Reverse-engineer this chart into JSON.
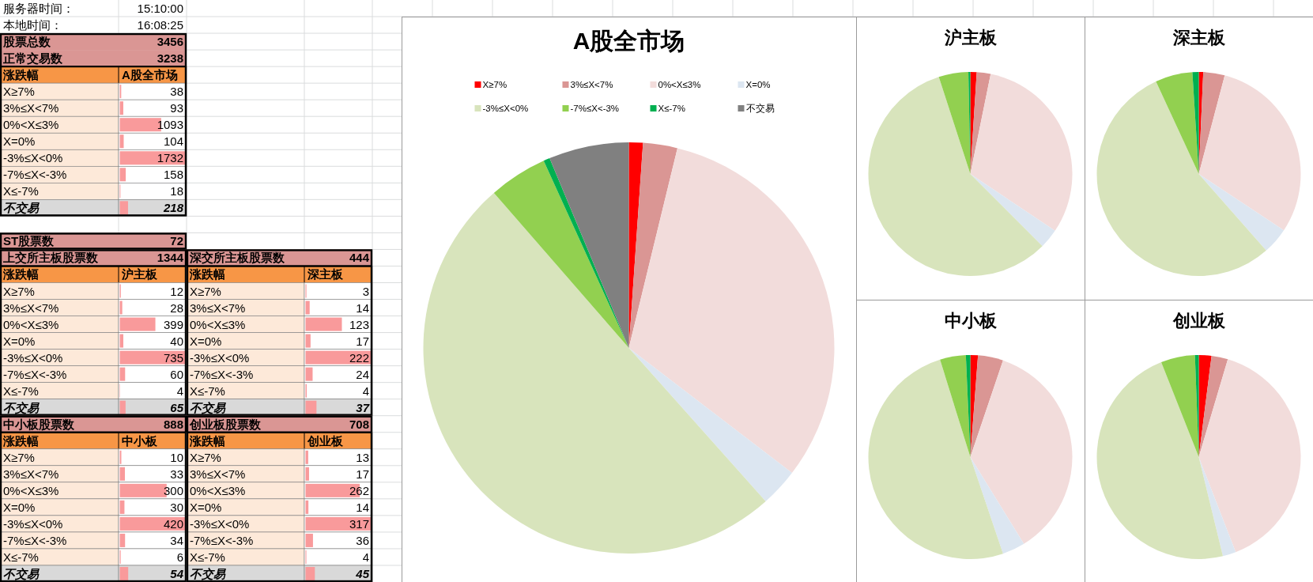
{
  "chart_data": [
    {
      "type": "other",
      "annotations": [
        "服务器时间：",
        "15:10:00",
        "本地时间：",
        "16:08:25",
        "ST股票数",
        "72"
      ]
    },
    {
      "type": "bar",
      "orientation": "horizontal",
      "ylabel": "涨跌幅",
      "xlabel": "A股全市场",
      "categories": [
        "X≥7%",
        "3%≤X<7%",
        "0%<X≤3%",
        "X=0%",
        "-3%≤X<0%",
        "-7%≤X<-3%",
        "X≤-7%",
        "不交易"
      ],
      "values": [
        38,
        93,
        1093,
        104,
        1732,
        158,
        18,
        218
      ],
      "color": "#f99a9b",
      "data_labels": true,
      "xlim": [
        0,
        1732
      ],
      "tick_labels": "y",
      "annotations": [
        "股票总数",
        "3456",
        "正常交易数",
        "3238"
      ]
    },
    {
      "type": "bar",
      "orientation": "horizontal",
      "ylabel": "涨跌幅",
      "xlabel": "沪主板",
      "categories": [
        "X≥7%",
        "3%≤X<7%",
        "0%<X≤3%",
        "X=0%",
        "-3%≤X<0%",
        "-7%≤X<-3%",
        "X≤-7%",
        "不交易"
      ],
      "values": [
        12,
        28,
        399,
        40,
        735,
        60,
        4,
        65
      ],
      "color": "#f99a9b",
      "data_labels": true,
      "xlim": [
        0,
        735
      ],
      "tick_labels": "y",
      "annotations": [
        "上交所主板股票数",
        "1344"
      ]
    },
    {
      "type": "bar",
      "orientation": "horizontal",
      "ylabel": "涨跌幅",
      "xlabel": "深主板",
      "categories": [
        "X≥7%",
        "3%≤X<7%",
        "0%<X≤3%",
        "X=0%",
        "-3%≤X<0%",
        "-7%≤X<-3%",
        "X≤-7%",
        "不交易"
      ],
      "values": [
        3,
        14,
        123,
        17,
        222,
        24,
        4,
        37
      ],
      "color": "#f99a9b",
      "data_labels": true,
      "xlim": [
        0,
        222
      ],
      "tick_labels": "y",
      "annotations": [
        "深交所主板股票数",
        "444"
      ]
    },
    {
      "type": "bar",
      "orientation": "horizontal",
      "ylabel": "涨跌幅",
      "xlabel": "中小板",
      "categories": [
        "X≥7%",
        "3%≤X<7%",
        "0%<X≤3%",
        "X=0%",
        "-3%≤X<0%",
        "-7%≤X<-3%",
        "X≤-7%",
        "不交易"
      ],
      "values": [
        10,
        33,
        300,
        30,
        420,
        34,
        6,
        54
      ],
      "color": "#f99a9b",
      "data_labels": true,
      "xlim": [
        0,
        420
      ],
      "tick_labels": "y",
      "annotations": [
        "中小板股票数",
        "888"
      ]
    },
    {
      "type": "bar",
      "orientation": "horizontal",
      "ylabel": "涨跌幅",
      "xlabel": "创业板",
      "categories": [
        "X≥7%",
        "3%≤X<7%",
        "0%<X≤3%",
        "X=0%",
        "-3%≤X<0%",
        "-7%≤X<-3%",
        "X≤-7%",
        "不交易"
      ],
      "values": [
        13,
        17,
        262,
        14,
        317,
        36,
        4,
        45
      ],
      "color": "#f99a9b",
      "data_labels": true,
      "xlim": [
        0,
        317
      ],
      "tick_labels": "y",
      "annotations": [
        "创业板股票数",
        "708"
      ]
    },
    {
      "type": "pie",
      "title": "A股全市场",
      "categories": [
        "X≥7%",
        "3%≤X<7%",
        "0%<X≤3%",
        "X=0%",
        "-3%≤X<0%",
        "-7%≤X<-3%",
        "X≤-7%",
        "不交易"
      ],
      "values": [
        1.1,
        2.7,
        31.6,
        3.0,
        50.2,
        4.6,
        0.5,
        6.3
      ],
      "colors": [
        "#ff0000",
        "#da9694",
        "#f2dcdb",
        "#dce6f1",
        "#d8e4bc",
        "#92d050",
        "#00b050",
        "#808080"
      ],
      "legend": "top"
    },
    {
      "type": "pie",
      "title": "沪主板",
      "categories": [
        null,
        null,
        null,
        null,
        null,
        null,
        null
      ],
      "values": [
        1.0,
        2.2,
        31.2,
        3.1,
        57.5,
        4.7,
        0.3
      ],
      "colors": [
        "#ff0000",
        "#da9694",
        "#f2dcdb",
        "#dce6f1",
        "#d8e4bc",
        "#92d050",
        "#00b050"
      ]
    },
    {
      "type": "pie",
      "title": "深主板",
      "categories": [
        null,
        null,
        null,
        null,
        null,
        null,
        null
      ],
      "values": [
        0.7,
        3.4,
        30.2,
        4.2,
        54.6,
        5.9,
        1.0
      ],
      "colors": [
        "#ff0000",
        "#da9694",
        "#f2dcdb",
        "#dce6f1",
        "#d8e4bc",
        "#92d050",
        "#00b050"
      ]
    },
    {
      "type": "pie",
      "title": "中小板",
      "categories": [
        null,
        null,
        null,
        null,
        null,
        null,
        null
      ],
      "values": [
        1.2,
        4.0,
        36.0,
        3.6,
        50.4,
        4.1,
        0.7
      ],
      "colors": [
        "#ff0000",
        "#da9694",
        "#f2dcdb",
        "#dce6f1",
        "#d8e4bc",
        "#92d050",
        "#00b050"
      ]
    },
    {
      "type": "pie",
      "title": "创业板",
      "categories": [
        null,
        null,
        null,
        null,
        null,
        null,
        null
      ],
      "values": [
        2.0,
        2.6,
        39.5,
        2.1,
        47.8,
        5.4,
        0.6
      ],
      "colors": [
        "#ff0000",
        "#da9694",
        "#f2dcdb",
        "#dce6f1",
        "#d8e4bc",
        "#92d050",
        "#00b050"
      ]
    }
  ]
}
